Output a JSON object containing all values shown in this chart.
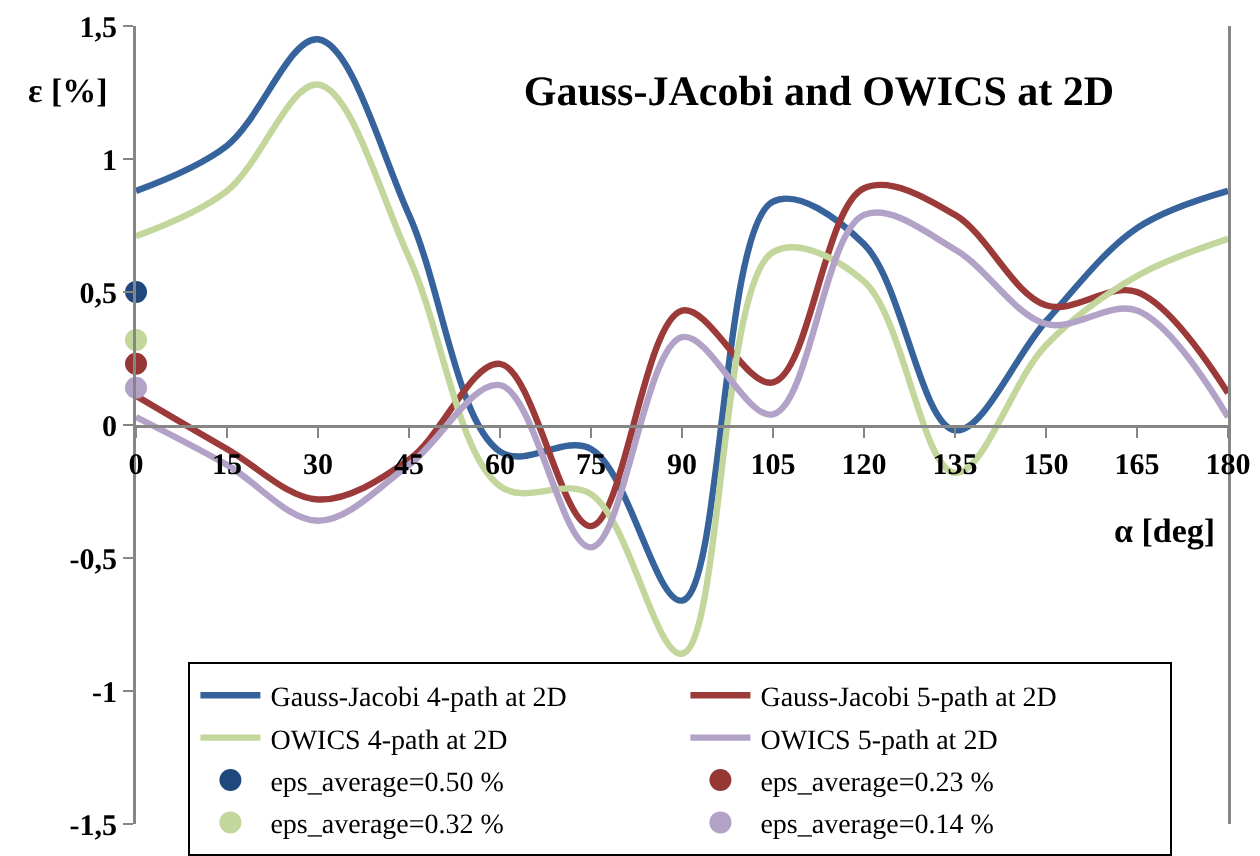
{
  "chart_data": {
    "type": "line",
    "title": "Gauss-JAcobi and OWICS at 2D",
    "xlabel": "α [deg]",
    "ylabel": "ε [%]",
    "x": [
      0,
      15,
      30,
      45,
      60,
      75,
      90,
      105,
      120,
      135,
      150,
      165,
      180
    ],
    "xlim": [
      0,
      180
    ],
    "xticks": [
      0,
      15,
      30,
      45,
      60,
      75,
      90,
      105,
      120,
      135,
      150,
      165,
      180
    ],
    "ylim": [
      -1.5,
      1.5
    ],
    "yticks": [
      {
        "value": -1.5,
        "label": "-1,5"
      },
      -1,
      {
        "value": -0.5,
        "label": "-0,5"
      },
      0,
      {
        "value": 0.5,
        "label": "0,5"
      },
      1,
      {
        "value": 1.5,
        "label": "1,5"
      }
    ],
    "grid": false,
    "legend": "bottom",
    "line_style": "solid",
    "marker": "none",
    "series": [
      {
        "name": "Gauss-Jacobi 4-path at 2D",
        "color": "#36639c",
        "values": [
          0.88,
          1.05,
          1.45,
          0.79,
          -0.1,
          -0.09,
          -0.66,
          0.84,
          0.68,
          -0.02,
          0.39,
          0.74,
          0.88
        ]
      },
      {
        "name": "Gauss-Jacobi 5-path at 2D",
        "color": "#9b3a38",
        "values": [
          0.11,
          -0.09,
          -0.28,
          -0.13,
          0.23,
          -0.38,
          0.43,
          0.16,
          0.89,
          0.79,
          0.45,
          0.5,
          0.12
        ]
      },
      {
        "name": "OWICS 4-path at 2D",
        "color": "#c3d69b",
        "values": [
          0.71,
          0.88,
          1.28,
          0.63,
          -0.23,
          -0.26,
          -0.86,
          0.65,
          0.54,
          -0.18,
          0.3,
          0.56,
          0.7
        ]
      },
      {
        "name": "OWICS 5-path at 2D",
        "color": "#b3a2c7",
        "values": [
          0.03,
          -0.15,
          -0.36,
          -0.15,
          0.15,
          -0.46,
          0.33,
          0.04,
          0.79,
          0.66,
          0.38,
          0.43,
          0.03
        ]
      },
      {
        "name": "eps_average=0.50 %",
        "type": "scatter",
        "marker": "circle",
        "color": "#1f497d",
        "values": [
          0.5,
          null,
          null,
          null,
          null,
          null,
          null,
          null,
          null,
          null,
          null,
          null,
          null
        ]
      },
      {
        "name": "eps_average=0.23 %",
        "type": "scatter",
        "marker": "circle",
        "color": "#953735",
        "values": [
          0.23,
          null,
          null,
          null,
          null,
          null,
          null,
          null,
          null,
          null,
          null,
          null,
          null
        ]
      },
      {
        "name": "eps_average=0.32 %",
        "type": "scatter",
        "marker": "circle",
        "color": "#c3d69b",
        "values": [
          0.32,
          null,
          null,
          null,
          null,
          null,
          null,
          null,
          null,
          null,
          null,
          null,
          null
        ]
      },
      {
        "name": "eps_average=0.14 %",
        "type": "scatter",
        "marker": "circle",
        "color": "#b3a2c7",
        "values": [
          0.14,
          null,
          null,
          null,
          null,
          null,
          null,
          null,
          null,
          null,
          null,
          null,
          null
        ]
      }
    ]
  }
}
